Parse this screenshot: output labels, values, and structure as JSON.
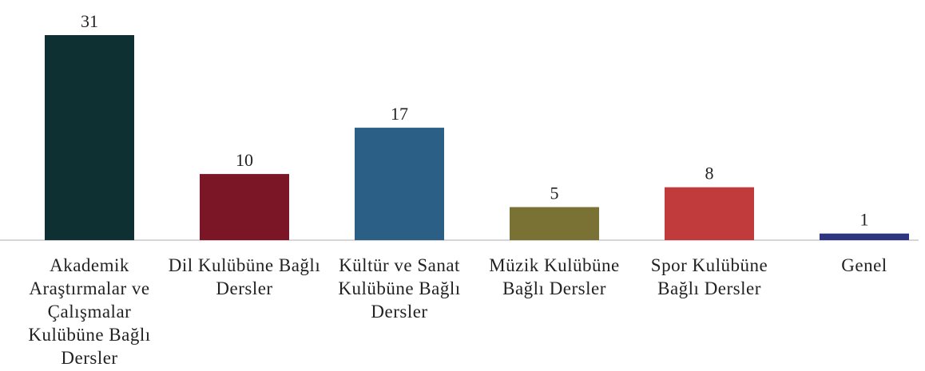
{
  "chart_data": {
    "type": "bar",
    "categories": [
      "Akademik Araştırmalar ve Çalışmalar Kulübüne Bağlı Dersler",
      "Dil Kulübüne Bağlı Dersler",
      "Kültür ve Sanat Kulübüne Bağlı Dersler",
      "Müzik Kulübüne Bağlı Dersler",
      "Spor Kulübüne Bağlı Dersler",
      "Genel"
    ],
    "values": [
      31,
      10,
      17,
      5,
      8,
      1
    ],
    "colors": [
      "#0f3033",
      "#7a1626",
      "#2c5f86",
      "#7a7234",
      "#c13a3c",
      "#2d3480"
    ]
  }
}
